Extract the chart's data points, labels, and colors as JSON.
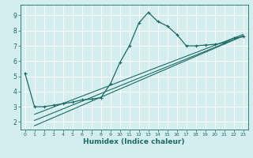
{
  "xlabel": "Humidex (Indice chaleur)",
  "bg_color": "#d4eef0",
  "grid_color": "#ffffff",
  "line_color": "#1a6b63",
  "xlim": [
    -0.5,
    23.5
  ],
  "ylim": [
    1.5,
    9.7
  ],
  "yticks": [
    2,
    3,
    4,
    5,
    6,
    7,
    8,
    9
  ],
  "xticks": [
    0,
    1,
    2,
    3,
    4,
    5,
    6,
    7,
    8,
    9,
    10,
    11,
    12,
    13,
    14,
    15,
    16,
    17,
    18,
    19,
    20,
    21,
    22,
    23
  ],
  "series1_x": [
    0,
    1,
    2,
    3,
    4,
    5,
    6,
    7,
    8,
    9,
    10,
    11,
    12,
    13,
    14,
    15,
    16,
    17,
    18,
    19,
    20,
    21,
    22,
    23
  ],
  "series1_y": [
    5.2,
    3.0,
    3.0,
    3.1,
    3.2,
    3.3,
    3.45,
    3.5,
    3.6,
    4.5,
    5.9,
    7.0,
    8.5,
    9.2,
    8.6,
    8.3,
    7.75,
    7.0,
    7.0,
    7.05,
    7.1,
    7.2,
    7.5,
    7.6
  ],
  "line1_x": [
    1,
    23
  ],
  "line1_y": [
    1.75,
    7.65
  ],
  "line2_x": [
    1,
    23
  ],
  "line2_y": [
    2.1,
    7.65
  ],
  "line3_x": [
    1,
    23
  ],
  "line3_y": [
    2.5,
    7.75
  ]
}
